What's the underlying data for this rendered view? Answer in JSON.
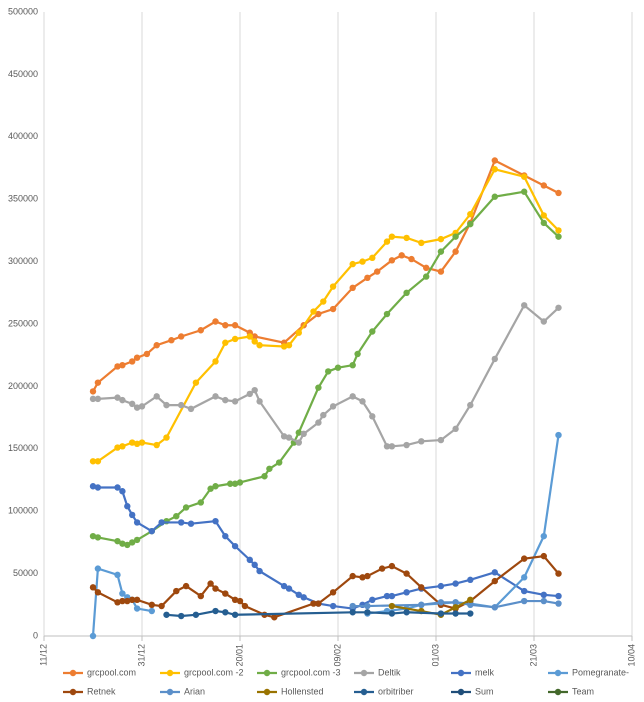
{
  "chart_data": {
    "type": "line",
    "xlim": [
      0,
      120
    ],
    "xticks": [
      {
        "value": 0,
        "label": "11/12"
      },
      {
        "value": 20,
        "label": "31/12"
      },
      {
        "value": 40,
        "label": "20/01"
      },
      {
        "value": 60,
        "label": "09/02"
      },
      {
        "value": 80,
        "label": "01/03"
      },
      {
        "value": 100,
        "label": "21/03"
      },
      {
        "value": 120,
        "label": "10/04"
      }
    ],
    "ylim": [
      0,
      500000
    ],
    "yticks": [
      0,
      50000,
      100000,
      150000,
      200000,
      250000,
      300000,
      350000,
      400000,
      450000,
      500000
    ],
    "grid": "x",
    "legend": "bottom",
    "series": [
      {
        "name": "grcpool.com",
        "color": "#ED7D31",
        "x": [
          10,
          11,
          15,
          16,
          18,
          19,
          21,
          23,
          26,
          28,
          32,
          35,
          37,
          39,
          42,
          43,
          49,
          53,
          56,
          59,
          63,
          66,
          68,
          71,
          73,
          75,
          78,
          81,
          84,
          87,
          92,
          98,
          102,
          105
        ],
        "values": [
          196000,
          203000,
          216000,
          217000,
          220000,
          223000,
          226000,
          233000,
          237000,
          240000,
          245000,
          252000,
          249000,
          249000,
          243000,
          240000,
          235000,
          249000,
          258000,
          262000,
          279000,
          287000,
          292000,
          301000,
          305000,
          302000,
          295000,
          292000,
          308000,
          331000,
          381000,
          369000,
          361000,
          355000
        ]
      },
      {
        "name": "grcpool.com -2",
        "color": "#FFC000",
        "x": [
          10,
          11,
          15,
          16,
          18,
          19,
          20,
          23,
          25,
          31,
          35,
          37,
          39,
          42,
          43,
          44,
          49,
          50,
          52,
          55,
          57,
          59,
          63,
          65,
          67,
          70,
          71,
          74,
          77,
          81,
          84,
          87,
          92,
          98,
          102,
          105
        ],
        "values": [
          140000,
          140000,
          151000,
          152000,
          155000,
          154000,
          155000,
          153000,
          159000,
          203000,
          220000,
          235000,
          238000,
          240000,
          236000,
          233000,
          232000,
          233000,
          243000,
          260000,
          268000,
          280000,
          298000,
          300000,
          303000,
          316000,
          320000,
          319000,
          315000,
          318000,
          323000,
          338000,
          374000,
          368000,
          337000,
          325000
        ]
      },
      {
        "name": "grcpool.com -3",
        "color": "#70AD47",
        "x": [
          10,
          11,
          15,
          16,
          17,
          18,
          19,
          22,
          25,
          27,
          29,
          32,
          34,
          35,
          38,
          39,
          40,
          45,
          46,
          48,
          51,
          52,
          56,
          58,
          60,
          63,
          64,
          67,
          70,
          74,
          78,
          81,
          84,
          87,
          92,
          98,
          102,
          105
        ],
        "values": [
          80000,
          79000,
          76000,
          74000,
          73000,
          75000,
          77000,
          84000,
          92000,
          96000,
          103000,
          107000,
          118000,
          120000,
          122000,
          122000,
          123000,
          128000,
          134000,
          139000,
          155000,
          163000,
          199000,
          212000,
          215000,
          217000,
          226000,
          244000,
          258000,
          275000,
          288000,
          308000,
          320000,
          330000,
          352000,
          356000,
          331000,
          320000
        ]
      },
      {
        "name": "Deltik",
        "color": "#A5A5A5",
        "x": [
          10,
          11,
          15,
          16,
          18,
          19,
          20,
          23,
          25,
          28,
          30,
          35,
          37,
          39,
          42,
          43,
          44,
          49,
          50,
          52,
          53,
          56,
          57,
          59,
          63,
          65,
          67,
          70,
          71,
          74,
          77,
          81,
          84,
          87,
          92,
          98,
          102,
          105
        ],
        "values": [
          190000,
          190000,
          191000,
          189000,
          186000,
          183000,
          184000,
          192000,
          185000,
          185000,
          182000,
          192000,
          189000,
          188000,
          194000,
          197000,
          188000,
          160000,
          159000,
          155000,
          162000,
          171000,
          177000,
          184000,
          192000,
          188000,
          176000,
          152000,
          152000,
          153000,
          156000,
          157000,
          166000,
          185000,
          222000,
          265000,
          252000,
          263000
        ]
      },
      {
        "name": "melk",
        "color": "#4472C4",
        "x": [
          10,
          11,
          15,
          16,
          17,
          18,
          19,
          22,
          24,
          28,
          30,
          35,
          37,
          39,
          42,
          43,
          44,
          49,
          50,
          52,
          53,
          56,
          59,
          63,
          65,
          67,
          70,
          71,
          74,
          77,
          81,
          84,
          87,
          92,
          98,
          102,
          105
        ],
        "values": [
          120000,
          119000,
          119000,
          116000,
          104000,
          97000,
          91000,
          84000,
          91000,
          91000,
          90000,
          92000,
          80000,
          72000,
          61000,
          57000,
          52000,
          40000,
          38000,
          33000,
          31000,
          26000,
          24000,
          22000,
          25000,
          29000,
          32000,
          32000,
          35000,
          38000,
          40000,
          42000,
          45000,
          51000,
          36000,
          33000,
          32000
        ]
      },
      {
        "name": "Pomegranate-",
        "color": "#5B9BD5",
        "x": [
          10,
          11,
          15,
          16,
          17,
          18,
          19,
          22,
          40,
          66,
          70,
          74,
          77,
          81,
          84,
          87,
          92,
          98,
          102,
          105
        ],
        "values": [
          0,
          54000,
          49000,
          34000,
          31000,
          29000,
          22000,
          20000,
          null,
          18000,
          20000,
          22000,
          25000,
          26000,
          27000,
          26000,
          23000,
          47000,
          80000,
          161000
        ]
      },
      {
        "name": "Retnek",
        "color": "#9E480E",
        "x": [
          10,
          11,
          15,
          16,
          17,
          18,
          19,
          22,
          24,
          27,
          29,
          32,
          34,
          35,
          37,
          39,
          40,
          41,
          45,
          47,
          55,
          56,
          59,
          63,
          65,
          66,
          69,
          71,
          74,
          77,
          81,
          84,
          87,
          92,
          98,
          102,
          105
        ],
        "values": [
          39000,
          35000,
          27000,
          28000,
          28000,
          29000,
          29000,
          25000,
          24000,
          36000,
          40000,
          32000,
          42000,
          38000,
          34000,
          29000,
          28000,
          24000,
          17000,
          15000,
          26000,
          26000,
          35000,
          48000,
          47000,
          48000,
          54000,
          56000,
          50000,
          39000,
          25000,
          22000,
          28000,
          44000,
          62000,
          64000,
          50000
        ]
      },
      {
        "name": "Arian",
        "color": "#5B8FC9",
        "x": [
          63,
          66,
          77,
          81,
          84,
          87,
          92,
          98,
          102,
          105
        ],
        "values": [
          24000,
          24000,
          25000,
          27000,
          27000,
          25000,
          23000,
          28000,
          28000,
          26000
        ]
      },
      {
        "name": "Hollensted",
        "color": "#997300",
        "x": [
          71,
          77,
          81,
          84,
          87
        ],
        "values": [
          24000,
          20000,
          17000,
          23000,
          29000
        ]
      },
      {
        "name": "orbitriber",
        "color": "#255E91",
        "x": [
          25,
          28,
          31,
          35,
          37,
          39,
          63,
          66,
          71,
          74,
          81,
          84,
          87
        ],
        "values": [
          17000,
          16000,
          17000,
          20000,
          19000,
          17000,
          19000,
          19000,
          18000,
          19000,
          18000,
          18000,
          18000
        ]
      },
      {
        "name": "Sum",
        "color": "#1F4E79",
        "x": [],
        "values": []
      },
      {
        "name": "Team",
        "color": "#43682B",
        "x": [],
        "values": []
      }
    ]
  }
}
